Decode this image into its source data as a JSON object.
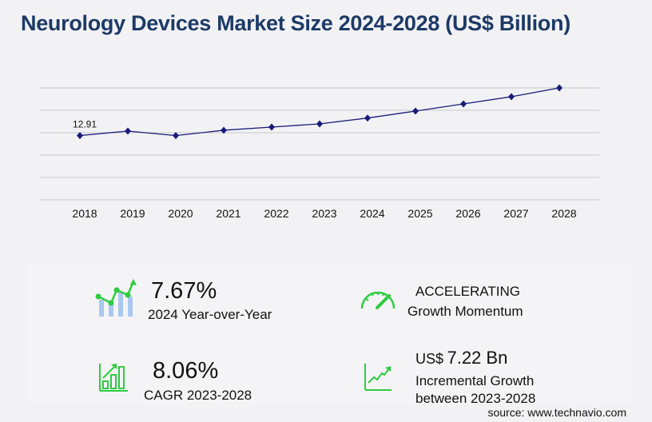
{
  "title": "Neurology Devices Market Size 2024-2028 (US$ Billion)",
  "chart_data": {
    "type": "line",
    "title": "Neurology Devices Market Size 2024-2028 (US$ Billion)",
    "categories": [
      "2018",
      "2019",
      "2020",
      "2021",
      "2022",
      "2023",
      "2024",
      "2025",
      "2026",
      "2027",
      "2028"
    ],
    "values": [
      12.91,
      13.8,
      12.9,
      13.97,
      14.61,
      15.25,
      16.42,
      17.82,
      19.26,
      20.71,
      22.47
    ],
    "data_labels": {
      "2018": "12.91"
    },
    "ylim": [
      0,
      22.47
    ],
    "grid": true,
    "line_color": "#1a1a7a",
    "marker": "diamond"
  },
  "stats": {
    "yoy": {
      "value": "7.67%",
      "label": "2024 Year-over-Year",
      "icon": "growth-chart-icon"
    },
    "momentum": {
      "value": "ACCELERATING",
      "label": "Growth Momentum",
      "icon": "speedometer-icon"
    },
    "cagr": {
      "value": "8.06%",
      "label": "CAGR 2023-2028",
      "icon": "bar-chart-icon"
    },
    "incremental": {
      "prefix": "US$",
      "value": "7.22 Bn",
      "label1": "Incremental Growth",
      "label2": "between 2023-2028",
      "icon": "trend-line-icon"
    }
  },
  "source": "source: www.technavio.com",
  "colors": {
    "title": "#1d3a66",
    "accent_green": "#2ecc40",
    "bar_blue": "#a9c8f0"
  }
}
